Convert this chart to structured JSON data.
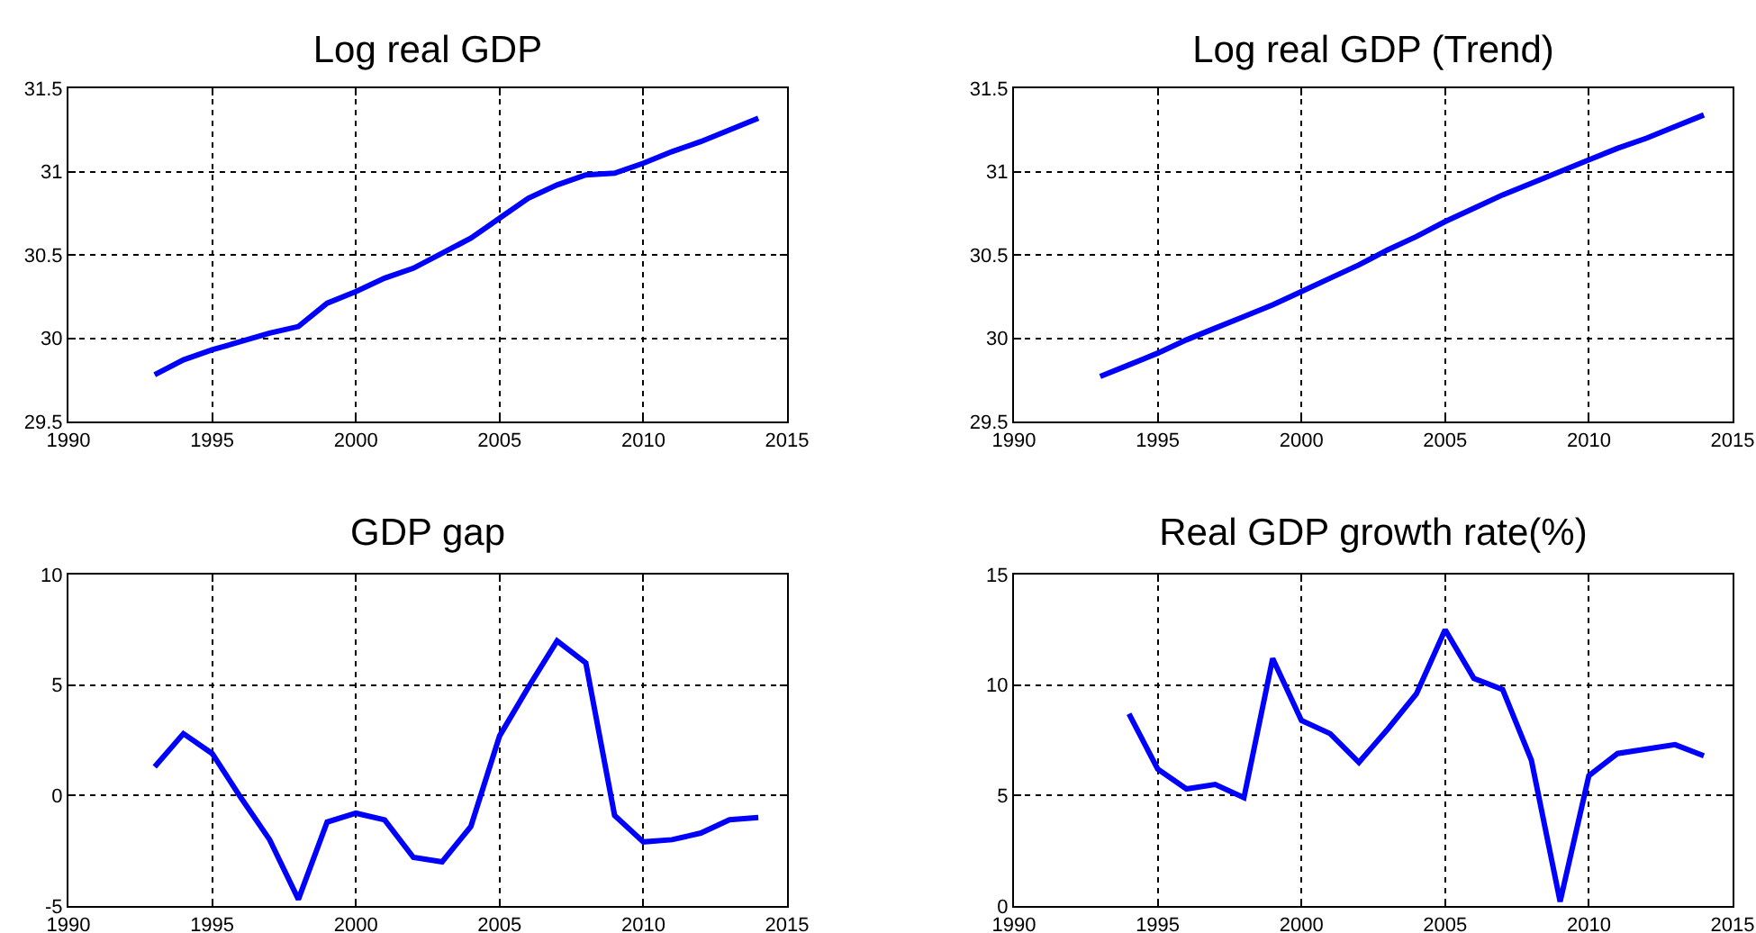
{
  "chart_data": [
    {
      "type": "line",
      "title": "Log real GDP",
      "x": [
        1993,
        1994,
        1995,
        1996,
        1997,
        1998,
        1999,
        2000,
        2001,
        2002,
        2003,
        2004,
        2005,
        2006,
        2007,
        2008,
        2009,
        2010,
        2011,
        2012,
        2013,
        2014
      ],
      "series": [
        {
          "color": "#0000ff",
          "values": [
            29.78,
            29.87,
            29.93,
            29.98,
            30.03,
            30.07,
            30.21,
            30.28,
            30.36,
            30.42,
            30.51,
            30.6,
            30.72,
            30.84,
            30.92,
            30.98,
            30.99,
            31.05,
            31.12,
            31.18,
            31.25,
            31.32
          ]
        }
      ],
      "xlim": [
        1990,
        2015
      ],
      "xticks": [
        1990,
        1995,
        2000,
        2005,
        2010,
        2015
      ],
      "ylim": [
        29.5,
        31.5
      ],
      "yticks": [
        29.5,
        30,
        30.5,
        31,
        31.5
      ],
      "grid": true,
      "line_style": "solid",
      "marker": "none"
    },
    {
      "type": "line",
      "title": "Log real GDP (Trend)",
      "x": [
        1993,
        1994,
        1995,
        1996,
        1997,
        1998,
        1999,
        2000,
        2001,
        2002,
        2003,
        2004,
        2005,
        2006,
        2007,
        2008,
        2009,
        2010,
        2011,
        2012,
        2013,
        2014
      ],
      "series": [
        {
          "color": "#0000ff",
          "values": [
            29.77,
            29.84,
            29.91,
            29.99,
            30.06,
            30.13,
            30.2,
            30.28,
            30.36,
            30.44,
            30.53,
            30.61,
            30.7,
            30.78,
            30.86,
            30.93,
            31.0,
            31.07,
            31.14,
            31.2,
            31.27,
            31.34
          ]
        }
      ],
      "xlim": [
        1990,
        2015
      ],
      "xticks": [
        1990,
        1995,
        2000,
        2005,
        2010,
        2015
      ],
      "ylim": [
        29.5,
        31.5
      ],
      "yticks": [
        29.5,
        30,
        30.5,
        31,
        31.5
      ],
      "grid": true,
      "line_style": "solid",
      "marker": "none"
    },
    {
      "type": "line",
      "title": "GDP gap",
      "x": [
        1993,
        1994,
        1995,
        1996,
        1997,
        1998,
        1999,
        2000,
        2001,
        2002,
        2003,
        2004,
        2005,
        2006,
        2007,
        2008,
        2009,
        2010,
        2011,
        2012,
        2013,
        2014
      ],
      "series": [
        {
          "color": "#0000ff",
          "values": [
            1.3,
            2.8,
            1.9,
            -0.1,
            -2.0,
            -4.7,
            -1.2,
            -0.8,
            -1.1,
            -2.8,
            -3.0,
            -1.4,
            2.7,
            4.9,
            7.0,
            6.0,
            -0.9,
            -2.1,
            -2.0,
            -1.7,
            -1.1,
            -1.0
          ]
        }
      ],
      "xlim": [
        1990,
        2015
      ],
      "xticks": [
        1990,
        1995,
        2000,
        2005,
        2010,
        2015
      ],
      "ylim": [
        -5,
        10
      ],
      "yticks": [
        -5,
        0,
        5,
        10
      ],
      "grid": true,
      "line_style": "solid",
      "marker": "none"
    },
    {
      "type": "line",
      "title": "Real GDP growth rate(%)",
      "x": [
        1994,
        1995,
        1996,
        1997,
        1998,
        1999,
        2000,
        2001,
        2002,
        2003,
        2004,
        2005,
        2006,
        2007,
        2008,
        2009,
        2010,
        2011,
        2012,
        2013,
        2014
      ],
      "series": [
        {
          "color": "#0000ff",
          "values": [
            8.7,
            6.2,
            5.3,
            5.5,
            4.9,
            11.2,
            8.4,
            7.8,
            6.5,
            8.0,
            9.6,
            12.5,
            10.3,
            9.8,
            6.6,
            0.2,
            5.9,
            6.9,
            7.1,
            7.3,
            6.8
          ]
        }
      ],
      "xlim": [
        1990,
        2015
      ],
      "xticks": [
        1990,
        1995,
        2000,
        2005,
        2010,
        2015
      ],
      "ylim": [
        0,
        15
      ],
      "yticks": [
        0,
        5,
        10,
        15
      ],
      "grid": true,
      "line_style": "solid",
      "marker": "none"
    }
  ]
}
